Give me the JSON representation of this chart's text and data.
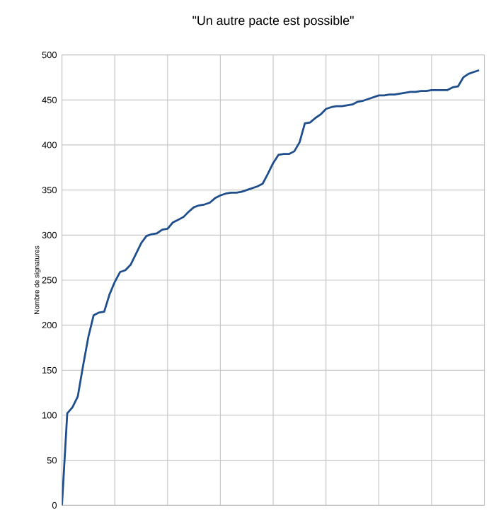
{
  "chart_data": {
    "type": "line",
    "title": "\"Un autre pacte est possible\"",
    "ylabel": "Nombre de signatures",
    "categories": [
      null,
      null,
      null,
      null,
      null,
      null,
      null,
      null,
      null,
      null,
      null,
      null,
      null,
      null,
      null,
      null,
      null,
      null,
      null,
      null,
      null,
      null,
      null,
      null,
      null,
      null,
      null,
      null,
      null,
      null,
      null,
      null,
      null,
      null,
      null,
      null,
      null,
      null,
      null,
      null,
      null,
      null,
      null,
      null,
      null,
      null,
      null,
      null,
      null,
      null,
      null,
      null,
      null,
      null,
      null,
      null,
      null,
      null,
      null,
      null,
      null,
      null,
      null,
      null,
      null,
      null,
      null,
      null,
      null,
      null,
      null,
      null,
      null,
      null,
      null,
      null,
      null,
      null,
      null,
      null
    ],
    "ylim": [
      0,
      500
    ],
    "yticks": [
      0,
      50,
      100,
      150,
      200,
      250,
      300,
      350,
      400,
      450,
      500
    ],
    "tick_labels": "y",
    "grid": true,
    "marker": "none",
    "line_style": "solid",
    "series": [
      {
        "color": "#1f4e8c",
        "values": [
          0,
          102,
          109,
          121,
          155,
          187,
          211,
          214,
          215,
          234,
          248,
          259,
          261,
          267,
          279,
          291,
          299,
          301,
          302,
          306,
          307,
          314,
          317,
          320,
          326,
          331,
          333,
          334,
          336,
          341,
          344,
          346,
          347,
          347,
          348,
          350,
          352,
          354,
          357,
          368,
          380,
          389,
          390,
          390,
          393,
          403,
          424,
          425,
          430,
          434,
          440,
          442,
          443,
          443,
          444,
          445,
          448,
          449,
          451,
          453,
          455,
          455,
          456,
          456,
          457,
          458,
          459,
          459,
          460,
          460,
          461,
          461,
          461,
          461,
          464,
          465,
          475,
          479,
          481,
          483
        ]
      }
    ]
  }
}
